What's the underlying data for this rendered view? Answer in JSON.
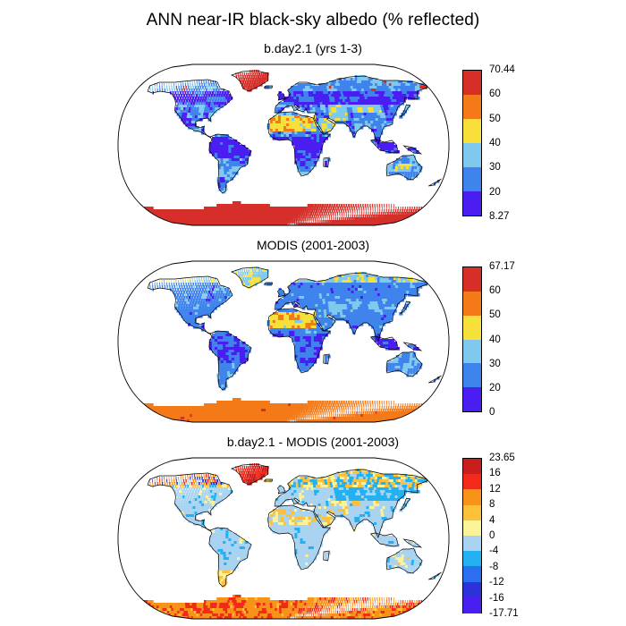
{
  "title": "ANN near-IR black-sky albedo (% reflected)",
  "panels": [
    {
      "title": "b.day2.1 (yrs 1-3)",
      "colorbar": {
        "labels": [
          "70.44",
          "60",
          "50",
          "40",
          "30",
          "20",
          "8.27"
        ],
        "colors": [
          "#d62f2a",
          "#f47a18",
          "#f7e03a",
          "#7fc8ee",
          "#3f83ec",
          "#4a1ef0"
        ]
      },
      "scheme": "model"
    },
    {
      "title": "MODIS (2001-2003)",
      "colorbar": {
        "labels": [
          "67.17",
          "60",
          "50",
          "40",
          "30",
          "20",
          "0"
        ],
        "colors": [
          "#d62f2a",
          "#f47a18",
          "#f7e03a",
          "#7fc8ee",
          "#3f83ec",
          "#4a1ef0"
        ]
      },
      "scheme": "obs"
    },
    {
      "title": "b.day2.1 - MODIS (2001-2003)",
      "colorbar": {
        "labels": [
          "23.65",
          "16",
          "12",
          "8",
          "4",
          "0",
          "-4",
          "-8",
          "-12",
          "-16",
          "-17.71"
        ],
        "colors": [
          "#c81e1e",
          "#f22a1a",
          "#f79318",
          "#fcc13a",
          "#fbf39a",
          "#a9d3f0",
          "#24b1f2",
          "#2a6ef1",
          "#2c31d8",
          "#4a1ef0"
        ]
      },
      "scheme": "diff"
    }
  ]
}
